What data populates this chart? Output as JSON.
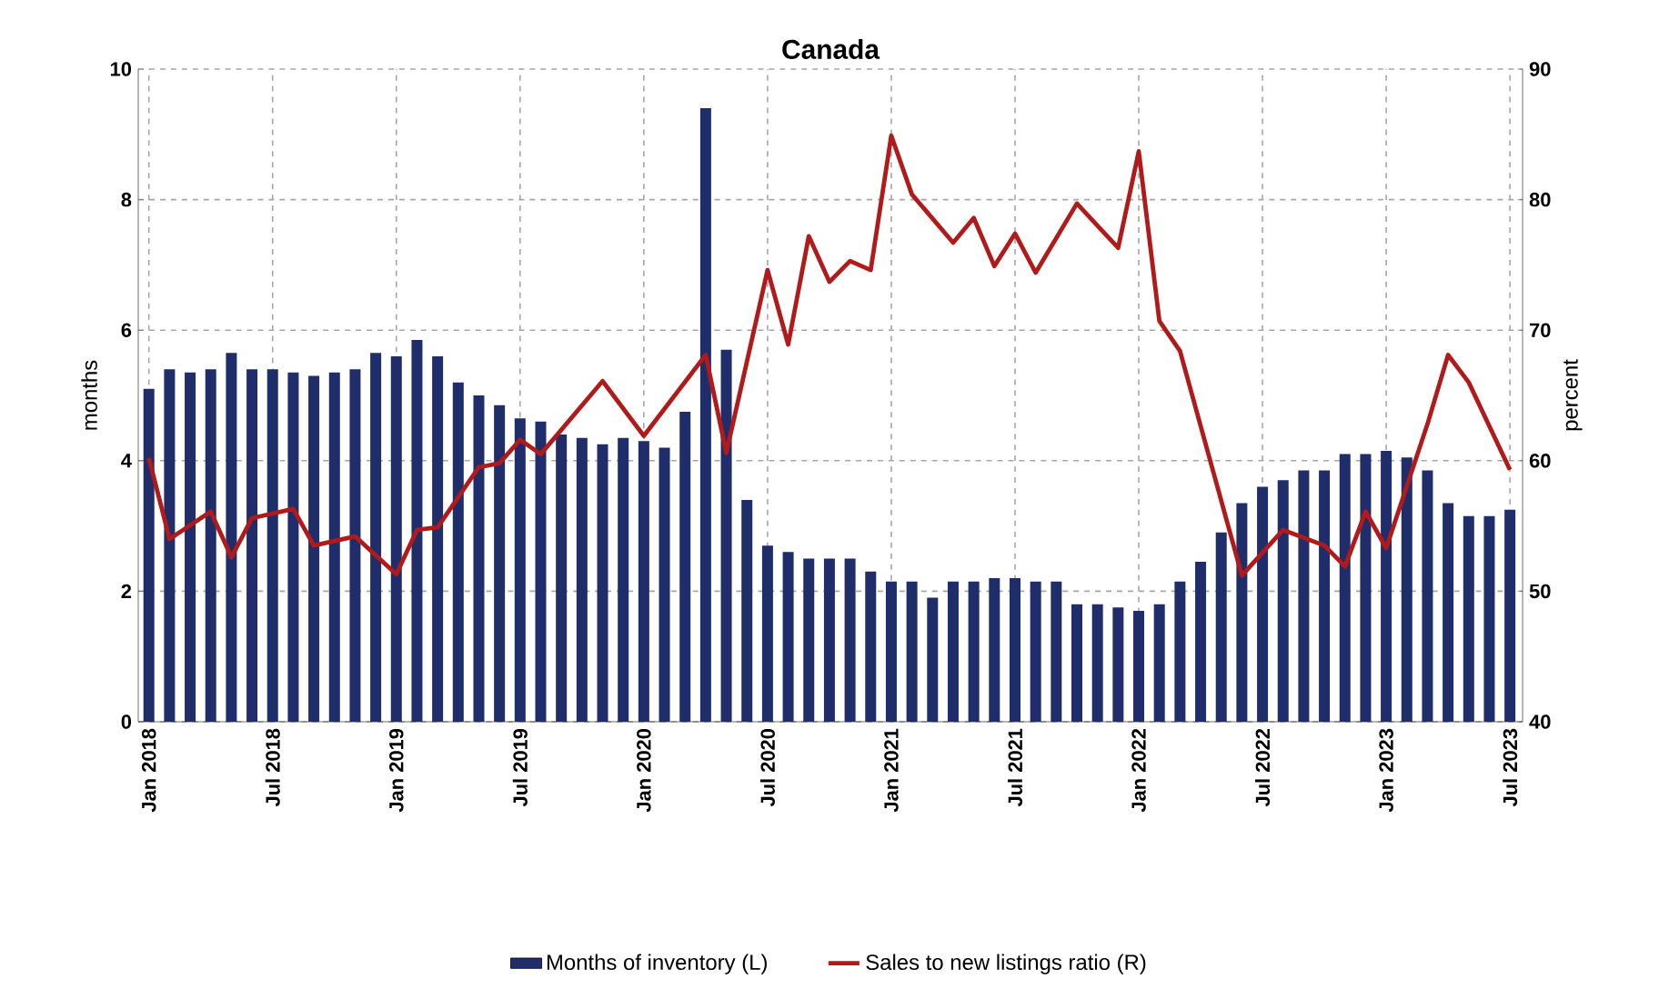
{
  "chart_data": {
    "type": "bar",
    "title": "Canada",
    "ylabel": "months",
    "y2label": "percent",
    "x": [
      "2018-01",
      "2018-02",
      "2018-03",
      "2018-04",
      "2018-05",
      "2018-06",
      "2018-07",
      "2018-08",
      "2018-09",
      "2018-10",
      "2018-11",
      "2018-12",
      "2019-01",
      "2019-02",
      "2019-03",
      "2019-04",
      "2019-05",
      "2019-06",
      "2019-07",
      "2019-08",
      "2019-09",
      "2019-10",
      "2019-11",
      "2019-12",
      "2020-01",
      "2020-02",
      "2020-03",
      "2020-04",
      "2020-05",
      "2020-06",
      "2020-07",
      "2020-08",
      "2020-09",
      "2020-10",
      "2020-11",
      "2020-12",
      "2021-01",
      "2021-02",
      "2021-03",
      "2021-04",
      "2021-05",
      "2021-06",
      "2021-07",
      "2021-08",
      "2021-09",
      "2021-10",
      "2021-11",
      "2021-12",
      "2022-01",
      "2022-02",
      "2022-03",
      "2022-04",
      "2022-05",
      "2022-06",
      "2022-07",
      "2022-08",
      "2022-09",
      "2022-10",
      "2022-11",
      "2022-12",
      "2023-01",
      "2023-02",
      "2023-03",
      "2023-04",
      "2023-05",
      "2023-06",
      "2023-07"
    ],
    "series": [
      {
        "name": "Months of inventory (L)",
        "color": "#1f2d6b",
        "values": [
          5.1,
          5.4,
          5.35,
          5.4,
          5.65,
          5.4,
          5.4,
          5.35,
          5.3,
          5.35,
          5.4,
          5.65,
          5.6,
          5.85,
          5.6,
          5.2,
          5.0,
          4.85,
          4.65,
          4.6,
          4.4,
          4.35,
          4.25,
          4.35,
          4.3,
          4.2,
          4.75,
          9.4,
          5.7,
          3.4,
          2.7,
          2.6,
          2.5,
          2.5,
          2.5,
          2.3,
          2.15,
          2.15,
          1.9,
          2.15,
          2.15,
          2.2,
          2.2,
          2.15,
          2.15,
          1.8,
          1.8,
          1.75,
          1.7,
          1.8,
          2.15,
          2.45,
          2.9,
          3.35,
          3.6,
          3.7,
          3.85,
          3.85,
          4.1,
          4.1,
          4.15,
          4.05,
          3.85,
          3.35,
          3.15,
          3.15,
          3.25
        ]
      },
      {
        "name": "Sales to new listings ratio (R)",
        "type": "line",
        "axis": "y2",
        "color": "#b11a1a",
        "x": [
          "2018-01",
          "2018-02",
          "2018-04",
          "2018-05",
          "2018-06",
          "2018-08",
          "2018-09",
          "2018-11",
          "2019-01",
          "2019-02",
          "2019-03",
          "2019-05",
          "2019-06",
          "2019-07",
          "2019-08",
          "2019-11",
          "2020-01",
          "2020-04",
          "2020-05",
          "2020-07",
          "2020-08",
          "2020-09",
          "2020-10",
          "2020-11",
          "2020-12",
          "2021-01",
          "2021-02",
          "2021-04",
          "2021-05",
          "2021-06",
          "2021-07",
          "2021-08",
          "2021-10",
          "2021-12",
          "2022-01",
          "2022-02",
          "2022-03",
          "2022-06",
          "2022-08",
          "2022-10",
          "2022-11",
          "2022-12",
          "2023-01",
          "2023-03",
          "2023-04",
          "2023-05",
          "2023-07"
        ],
        "values": [
          60.2,
          54.0,
          56.1,
          52.6,
          55.6,
          56.3,
          53.5,
          54.2,
          51.3,
          54.7,
          54.9,
          59.5,
          59.8,
          61.6,
          60.5,
          66.1,
          61.9,
          68.1,
          60.6,
          74.6,
          68.9,
          77.2,
          73.7,
          75.3,
          74.6,
          84.9,
          80.4,
          76.7,
          78.6,
          74.9,
          77.4,
          74.4,
          79.7,
          76.3,
          83.7,
          70.7,
          68.4,
          51.2,
          54.7,
          53.5,
          51.9,
          56.1,
          53.3,
          62.8,
          68.1,
          66.0,
          59.3
        ]
      }
    ],
    "xlim": [
      "2017-12-16",
      "2023-07-20"
    ],
    "xticks": [
      {
        "value": "2018-01",
        "label": "Jan 2018"
      },
      {
        "value": "2018-07",
        "label": "Jul 2018"
      },
      {
        "value": "2019-01",
        "label": "Jan 2019"
      },
      {
        "value": "2019-07",
        "label": "Jul 2019"
      },
      {
        "value": "2020-01",
        "label": "Jan 2020"
      },
      {
        "value": "2020-07",
        "label": "Jul 2020"
      },
      {
        "value": "2021-01",
        "label": "Jan 2021"
      },
      {
        "value": "2021-07",
        "label": "Jul 2021"
      },
      {
        "value": "2022-01",
        "label": "Jan 2022"
      },
      {
        "value": "2022-07",
        "label": "Jul 2022"
      },
      {
        "value": "2023-01",
        "label": "Jan 2023"
      },
      {
        "value": "2023-07",
        "label": "Jul 2023"
      }
    ],
    "ylim": [
      0,
      10
    ],
    "yticks": [
      0,
      2,
      4,
      6,
      8,
      10
    ],
    "y2lim": [
      40,
      90
    ],
    "y2ticks": [
      40,
      50,
      60,
      70,
      80,
      90
    ],
    "grid": true,
    "legend": "bottom",
    "marker": "none"
  }
}
